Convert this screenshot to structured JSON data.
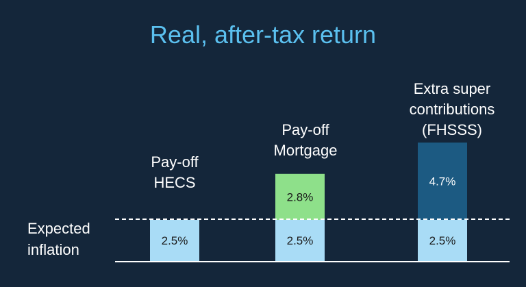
{
  "colors": {
    "background": "#14263a",
    "title": "#5bc0ef",
    "inflation": "#a9dcf6",
    "mortgage_extra": "#8ee08a",
    "super_extra": "#1c5a82",
    "baseline": "#ffffff"
  },
  "chart_data": {
    "type": "bar",
    "stacked": true,
    "title": "Real, after-tax return",
    "categories": [
      [
        "Pay-off",
        "HECS"
      ],
      [
        "Pay-off",
        "Mortgage"
      ],
      [
        "Extra super",
        "contributions",
        "(FHSSS)"
      ]
    ],
    "reference_line": {
      "label": [
        "Expected",
        "inflation"
      ],
      "value": 2.5,
      "style": "dashed"
    },
    "series": [
      {
        "values": [
          2.5,
          2.5,
          2.5
        ],
        "labels": [
          "2.5%",
          "2.5%",
          "2.5%"
        ],
        "colors": [
          "#a9dcf6",
          "#a9dcf6",
          "#a9dcf6"
        ]
      },
      {
        "values": [
          0,
          2.8,
          4.7
        ],
        "labels": [
          "",
          "2.8%",
          "4.7%"
        ],
        "colors": [
          "#a9dcf6",
          "#8ee08a",
          "#1c5a82"
        ]
      }
    ],
    "grid": false,
    "legend": "none"
  }
}
